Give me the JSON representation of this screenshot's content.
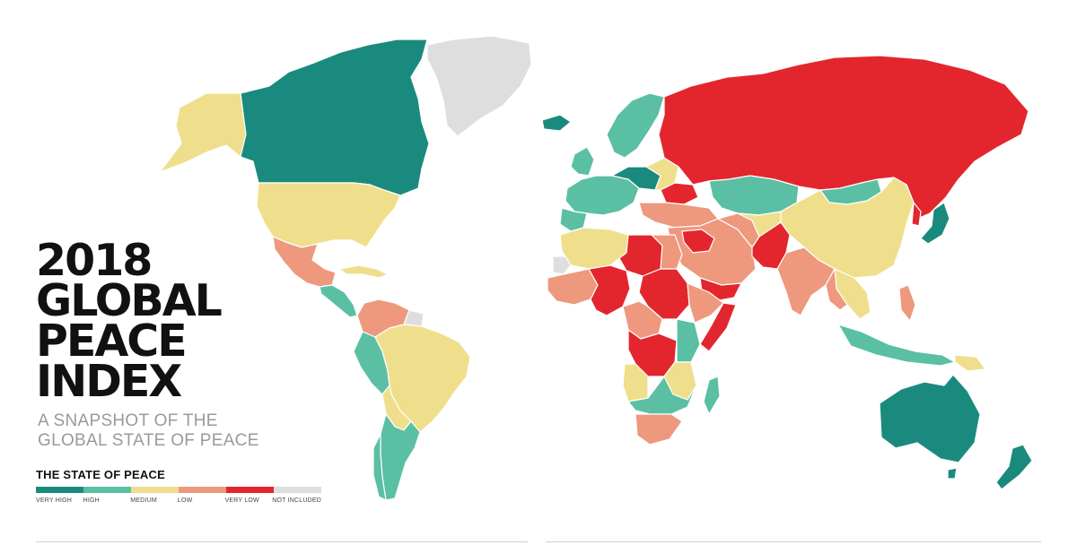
{
  "header": {
    "title_lines": [
      "2018",
      "GLOBAL",
      "PEACE",
      "INDEX"
    ],
    "subtitle_lines": [
      "A SNAPSHOT OF THE",
      "GLOBAL STATE OF PEACE"
    ]
  },
  "legend": {
    "title": "THE STATE OF PEACE",
    "items": [
      {
        "label": "VERY HIGH",
        "color": "#1b8a7e"
      },
      {
        "label": "HIGH",
        "color": "#5bbfa4"
      },
      {
        "label": "MEDIUM",
        "color": "#efdf8c"
      },
      {
        "label": "LOW",
        "color": "#ee987e"
      },
      {
        "label": "VERY LOW",
        "color": "#e3262d"
      },
      {
        "label": "NOT INCLUDED",
        "color": "#dedede"
      }
    ]
  },
  "regions": [
    {
      "name": "canada",
      "level": "VERY HIGH"
    },
    {
      "name": "greenland",
      "level": "NOT INCLUDED"
    },
    {
      "name": "alaska",
      "level": "MEDIUM"
    },
    {
      "name": "united-states",
      "level": "MEDIUM"
    },
    {
      "name": "mexico",
      "level": "LOW"
    },
    {
      "name": "colombia",
      "level": "LOW"
    },
    {
      "name": "brazil",
      "level": "MEDIUM"
    },
    {
      "name": "chile",
      "level": "HIGH"
    },
    {
      "name": "russia",
      "level": "VERY LOW"
    },
    {
      "name": "china",
      "level": "MEDIUM"
    },
    {
      "name": "india",
      "level": "LOW"
    },
    {
      "name": "australia",
      "level": "VERY HIGH"
    },
    {
      "name": "new-zealand",
      "level": "VERY HIGH"
    },
    {
      "name": "japan",
      "level": "VERY HIGH"
    },
    {
      "name": "iceland",
      "level": "VERY HIGH"
    },
    {
      "name": "afghanistan",
      "level": "VERY LOW"
    },
    {
      "name": "dr-congo",
      "level": "VERY LOW"
    },
    {
      "name": "sudan",
      "level": "VERY LOW"
    },
    {
      "name": "somalia",
      "level": "VERY LOW"
    },
    {
      "name": "south-africa",
      "level": "LOW"
    },
    {
      "name": "madagascar",
      "level": "HIGH"
    },
    {
      "name": "kazakhstan",
      "level": "HIGH"
    },
    {
      "name": "mongolia",
      "level": "HIGH"
    }
  ]
}
